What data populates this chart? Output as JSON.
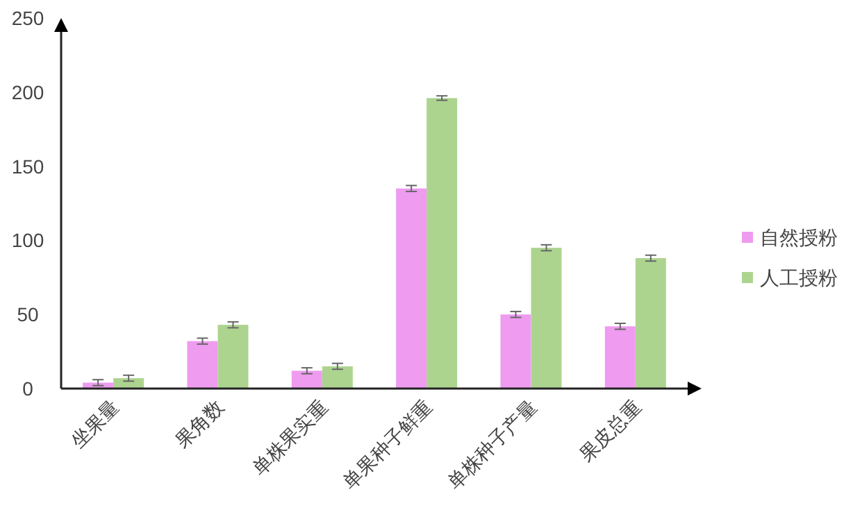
{
  "chart_data": {
    "type": "bar",
    "categories": [
      "坐果量",
      "果角数",
      "单株果实重",
      "单果种子鲜重",
      "单株种子产量",
      "果皮总重"
    ],
    "series": [
      {
        "name": "自然授粉",
        "color": "#ee9bf0",
        "values": [
          4,
          32,
          12,
          135,
          50,
          42
        ],
        "errors": [
          2,
          2,
          2,
          2,
          2,
          2
        ]
      },
      {
        "name": "人工授粉",
        "color": "#add48f",
        "values": [
          7,
          43,
          15,
          196,
          95,
          88
        ],
        "errors": [
          2,
          2,
          2,
          1.5,
          2,
          2
        ]
      }
    ],
    "ylim": [
      0,
      250
    ],
    "yticks": [
      0,
      50,
      100,
      150,
      200,
      250
    ],
    "grid": false,
    "legend": "right"
  }
}
